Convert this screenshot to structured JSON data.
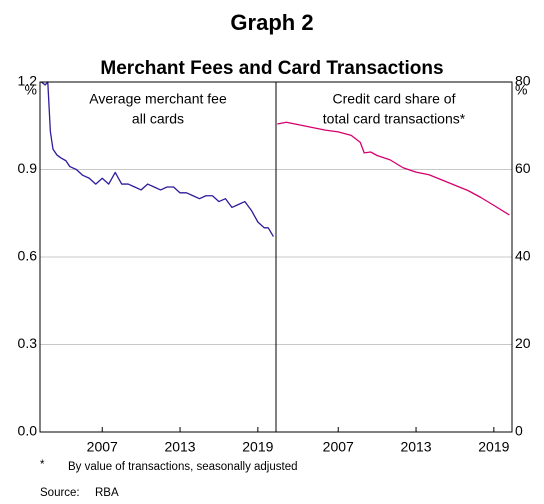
{
  "title": "Graph 2",
  "subtitle": "Merchant Fees and Card Transactions",
  "footnote_marker": "*",
  "footnote": "By value of transactions, seasonally adjusted",
  "source_label": "Source:",
  "source": "RBA",
  "chart_data": [
    {
      "type": "line",
      "title": [
        "Average merchant fee",
        "all cards"
      ],
      "y_unit": "%",
      "axis_side": "left",
      "x": [
        2002.3,
        2002.6,
        2002.8,
        2003.0,
        2003.2,
        2003.5,
        2003.8,
        2004.2,
        2004.5,
        2005.0,
        2005.5,
        2006.0,
        2006.5,
        2007.0,
        2007.5,
        2008.0,
        2008.5,
        2009.0,
        2009.5,
        2010.0,
        2010.5,
        2011.0,
        2011.5,
        2012.0,
        2012.5,
        2013.0,
        2013.5,
        2014.0,
        2014.5,
        2015.0,
        2015.5,
        2016.0,
        2016.5,
        2017.0,
        2017.5,
        2018.0,
        2018.5,
        2019.0,
        2019.5,
        2019.8,
        2020.2
      ],
      "series": [
        {
          "color": "#2d1c9c",
          "values": [
            1.2,
            1.19,
            1.2,
            1.03,
            0.97,
            0.95,
            0.94,
            0.93,
            0.91,
            0.9,
            0.88,
            0.87,
            0.85,
            0.87,
            0.85,
            0.89,
            0.85,
            0.85,
            0.84,
            0.83,
            0.85,
            0.84,
            0.83,
            0.84,
            0.84,
            0.82,
            0.82,
            0.81,
            0.8,
            0.81,
            0.81,
            0.79,
            0.8,
            0.77,
            0.78,
            0.79,
            0.76,
            0.72,
            0.7,
            0.7,
            0.67
          ]
        }
      ],
      "xlim": [
        2002.2,
        2020.4
      ],
      "xticks": [
        2007,
        2013,
        2019
      ],
      "ylim": [
        0,
        1.2
      ],
      "yticks": [
        {
          "value": 0,
          "label": "0.0"
        },
        0.3,
        0.6,
        0.9,
        1.2
      ],
      "grid": true
    },
    {
      "type": "line",
      "title": [
        "Credit card share of",
        "total card transactions*"
      ],
      "y_unit": "%",
      "axis_side": "right",
      "x": [
        2002.3,
        2003.0,
        2004.0,
        2005.0,
        2006.0,
        2007.0,
        2008.0,
        2008.7,
        2009.0,
        2009.5,
        2010.0,
        2011.0,
        2012.0,
        2013.0,
        2014.0,
        2015.0,
        2016.0,
        2017.0,
        2018.0,
        2019.0,
        2020.2
      ],
      "series": [
        {
          "color": "#d6006f",
          "values": [
            70.4,
            70.8,
            70.2,
            69.6,
            69.0,
            68.6,
            67.8,
            66.2,
            63.8,
            64.0,
            63.2,
            62.2,
            60.4,
            59.4,
            58.8,
            57.6,
            56.4,
            55.2,
            53.6,
            51.8,
            49.6
          ]
        }
      ],
      "xlim": [
        2002.2,
        2020.4
      ],
      "xticks": [
        2007,
        2013,
        2019
      ],
      "ylim": [
        0,
        80
      ],
      "yticks": [
        0,
        20,
        40,
        60,
        80
      ],
      "grid": true
    }
  ]
}
